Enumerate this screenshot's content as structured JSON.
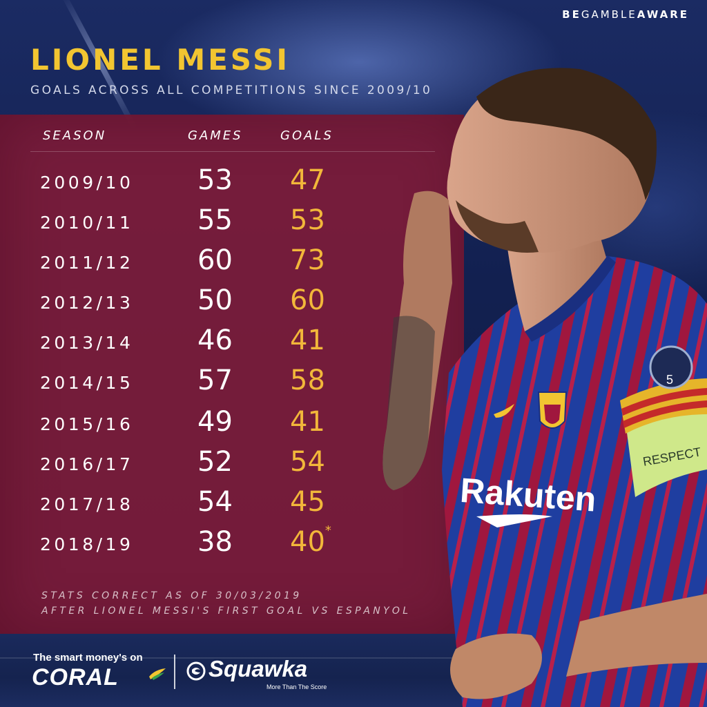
{
  "header": {
    "gamble_prefix": "BE",
    "gamble_middle": "GAMBLE",
    "gamble_suffix": "AWARE",
    "title": "LIONEL MESSI",
    "subtitle": "GOALS ACROSS ALL COMPETITIONS SINCE 2009/10"
  },
  "table": {
    "columns": [
      "SEASON",
      "GAMES",
      "GOALS"
    ],
    "rows": [
      {
        "season": "2009/10",
        "games": "53",
        "goals": "47",
        "note": ""
      },
      {
        "season": "2010/11",
        "games": "55",
        "goals": "53",
        "note": ""
      },
      {
        "season": "2011/12",
        "games": "60",
        "goals": "73",
        "note": ""
      },
      {
        "season": "2012/13",
        "games": "50",
        "goals": "60",
        "note": ""
      },
      {
        "season": "2013/14",
        "games": "46",
        "goals": "41",
        "note": ""
      },
      {
        "season": "2014/15",
        "games": "57",
        "goals": "58",
        "note": ""
      },
      {
        "season": "2015/16",
        "games": "49",
        "goals": "41",
        "note": ""
      },
      {
        "season": "2016/17",
        "games": "52",
        "goals": "54",
        "note": ""
      },
      {
        "season": "2017/18",
        "games": "54",
        "goals": "45",
        "note": ""
      },
      {
        "season": "2018/19",
        "games": "38",
        "goals": "40",
        "note": "*"
      }
    ]
  },
  "footnote": {
    "line1": "STATS CORRECT AS OF 30/03/2019",
    "line2": "AFTER LIONEL MESSI'S FIRST GOAL VS ESPANYOL"
  },
  "branding": {
    "tagline": "The smart money's on",
    "coral": "CORAL",
    "squawka": "Squawka",
    "squawka_tagline": "More Than The Score"
  },
  "jersey": {
    "sponsor": "Rakuten",
    "armband": "RESPECT",
    "badge_number": "5"
  },
  "colors": {
    "title_yellow": "#f2c531",
    "goals_orange": "#f2b73a",
    "panel_maroon": "#801c38",
    "background_blue": "#14204a",
    "kit_blue": "#1f3ea0",
    "kit_red": "#a0173e"
  }
}
